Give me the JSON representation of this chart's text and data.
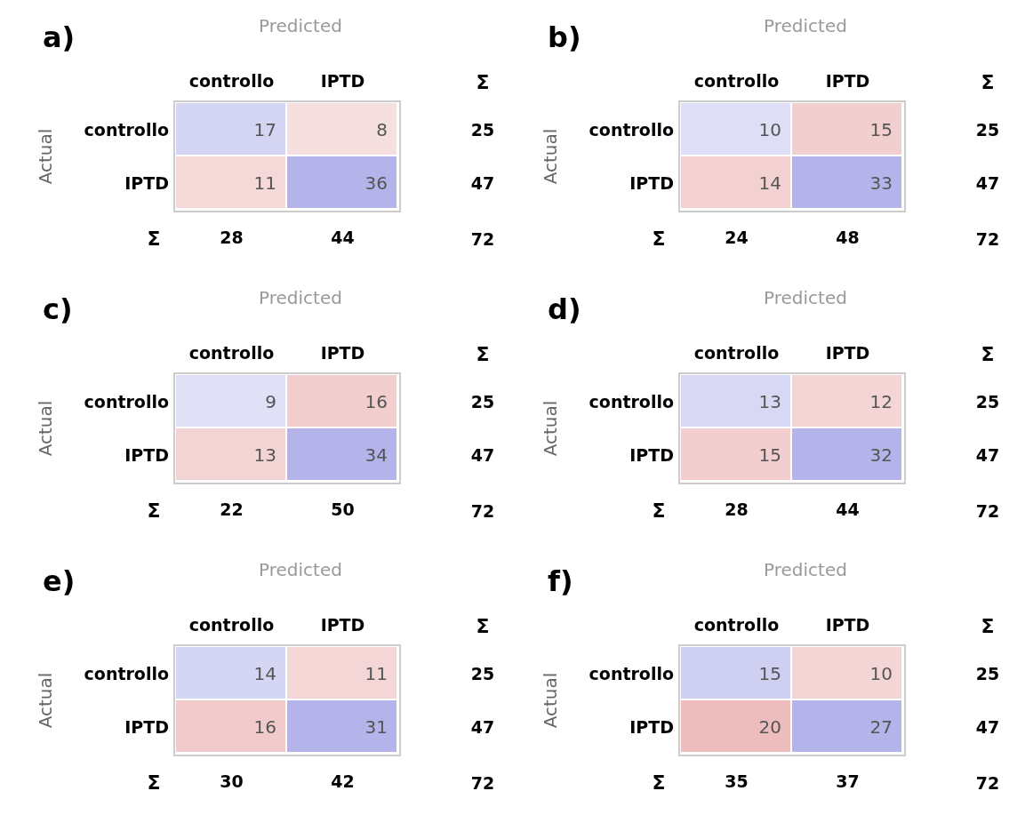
{
  "chart_data": [
    {
      "type": "heatmap",
      "title": "a)",
      "xlabel": "Predicted",
      "ylabel": "Actual",
      "y2label": "Σ",
      "categories": [
        "controllo",
        "IPTD"
      ],
      "y_categories": [
        "controllo",
        "IPTD"
      ],
      "cells": [
        [
          17,
          8
        ],
        [
          11,
          36
        ]
      ],
      "data_labels": true,
      "y2_categories": [
        "25",
        "47"
      ],
      "totals": [
        "28",
        "44"
      ],
      "annotations": [
        "Σ",
        "72"
      ]
    },
    {
      "type": "heatmap",
      "title": "b)",
      "xlabel": "Predicted",
      "ylabel": "Actual",
      "y2label": "Σ",
      "categories": [
        "controllo",
        "IPTD"
      ],
      "y_categories": [
        "controllo",
        "IPTD"
      ],
      "cells": [
        [
          10,
          15
        ],
        [
          14,
          33
        ]
      ],
      "data_labels": true,
      "y2_categories": [
        "25",
        "47"
      ],
      "totals": [
        "24",
        "48"
      ],
      "annotations": [
        "Σ",
        "72"
      ]
    },
    {
      "type": "heatmap",
      "title": "c)",
      "xlabel": "Predicted",
      "ylabel": "Actual",
      "y2label": "Σ",
      "categories": [
        "controllo",
        "IPTD"
      ],
      "y_categories": [
        "controllo",
        "IPTD"
      ],
      "cells": [
        [
          9,
          16
        ],
        [
          13,
          34
        ]
      ],
      "data_labels": true,
      "y2_categories": [
        "25",
        "47"
      ],
      "totals": [
        "22",
        "50"
      ],
      "annotations": [
        "Σ",
        "72"
      ]
    },
    {
      "type": "heatmap",
      "title": "d)",
      "xlabel": "Predicted",
      "ylabel": "Actual",
      "y2label": "Σ",
      "categories": [
        "controllo",
        "IPTD"
      ],
      "y_categories": [
        "controllo",
        "IPTD"
      ],
      "cells": [
        [
          13,
          12
        ],
        [
          15,
          32
        ]
      ],
      "data_labels": true,
      "y2_categories": [
        "25",
        "47"
      ],
      "totals": [
        "28",
        "44"
      ],
      "annotations": [
        "Σ",
        "72"
      ]
    },
    {
      "type": "heatmap",
      "title": "e)",
      "xlabel": "Predicted",
      "ylabel": "Actual",
      "y2label": "Σ",
      "categories": [
        "controllo",
        "IPTD"
      ],
      "y_categories": [
        "controllo",
        "IPTD"
      ],
      "cells": [
        [
          14,
          11
        ],
        [
          16,
          31
        ]
      ],
      "data_labels": true,
      "y2_categories": [
        "25",
        "47"
      ],
      "totals": [
        "30",
        "42"
      ],
      "annotations": [
        "Σ",
        "72"
      ]
    },
    {
      "type": "heatmap",
      "title": "f)",
      "xlabel": "Predicted",
      "ylabel": "Actual",
      "y2label": "Σ",
      "categories": [
        "controllo",
        "IPTD"
      ],
      "y_categories": [
        "controllo",
        "IPTD"
      ],
      "cells": [
        [
          15,
          10
        ],
        [
          20,
          27
        ]
      ],
      "data_labels": true,
      "y2_categories": [
        "25",
        "47"
      ],
      "totals": [
        "35",
        "37"
      ],
      "annotations": [
        "Σ",
        "72"
      ]
    }
  ]
}
